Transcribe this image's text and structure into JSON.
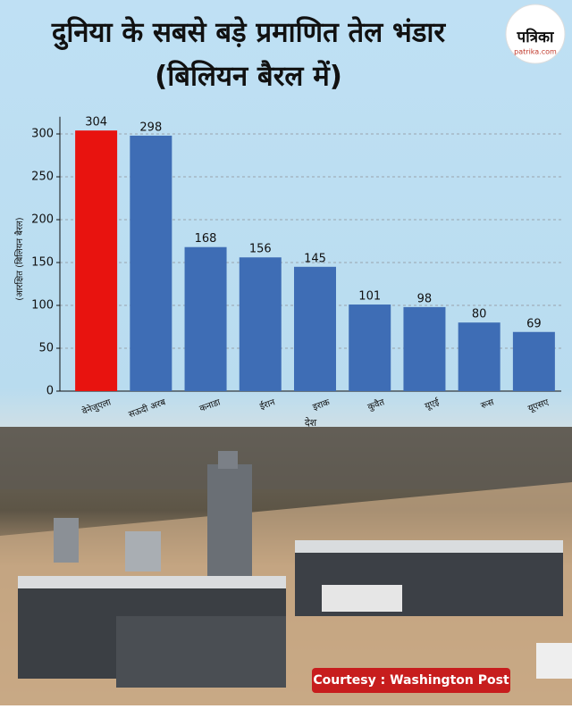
{
  "chart_data": {
    "type": "bar",
    "title": "दुनिया के सबसे बड़े प्रमाणित तेल भंडार",
    "subtitle": "(बिलियन बैरल में)",
    "y_label": "(आरक्षित (बिलियन बैरल)",
    "x_label": "देश",
    "categories": [
      "वेनेजुएला",
      "सऊदी अरब",
      "कनाडा",
      "ईरान",
      "इराक",
      "कुवैत",
      "यूएई",
      "रूस",
      "यूएसए"
    ],
    "values": [
      304,
      298,
      168,
      156,
      145,
      101,
      98,
      80,
      69
    ],
    "colors": [
      "#e8130f",
      "#3e6db5",
      "#3e6db5",
      "#3e6db5",
      "#3e6db5",
      "#3e6db5",
      "#3e6db5",
      "#3e6db5",
      "#3e6db5"
    ],
    "ylim": [
      0,
      320
    ],
    "yticks": [
      0,
      50,
      100,
      150,
      200,
      250,
      300
    ],
    "grid": true
  },
  "logo": {
    "name": "पत्रिका",
    "url": "patrika.com"
  },
  "credit": "Courtesy : Washington Post"
}
